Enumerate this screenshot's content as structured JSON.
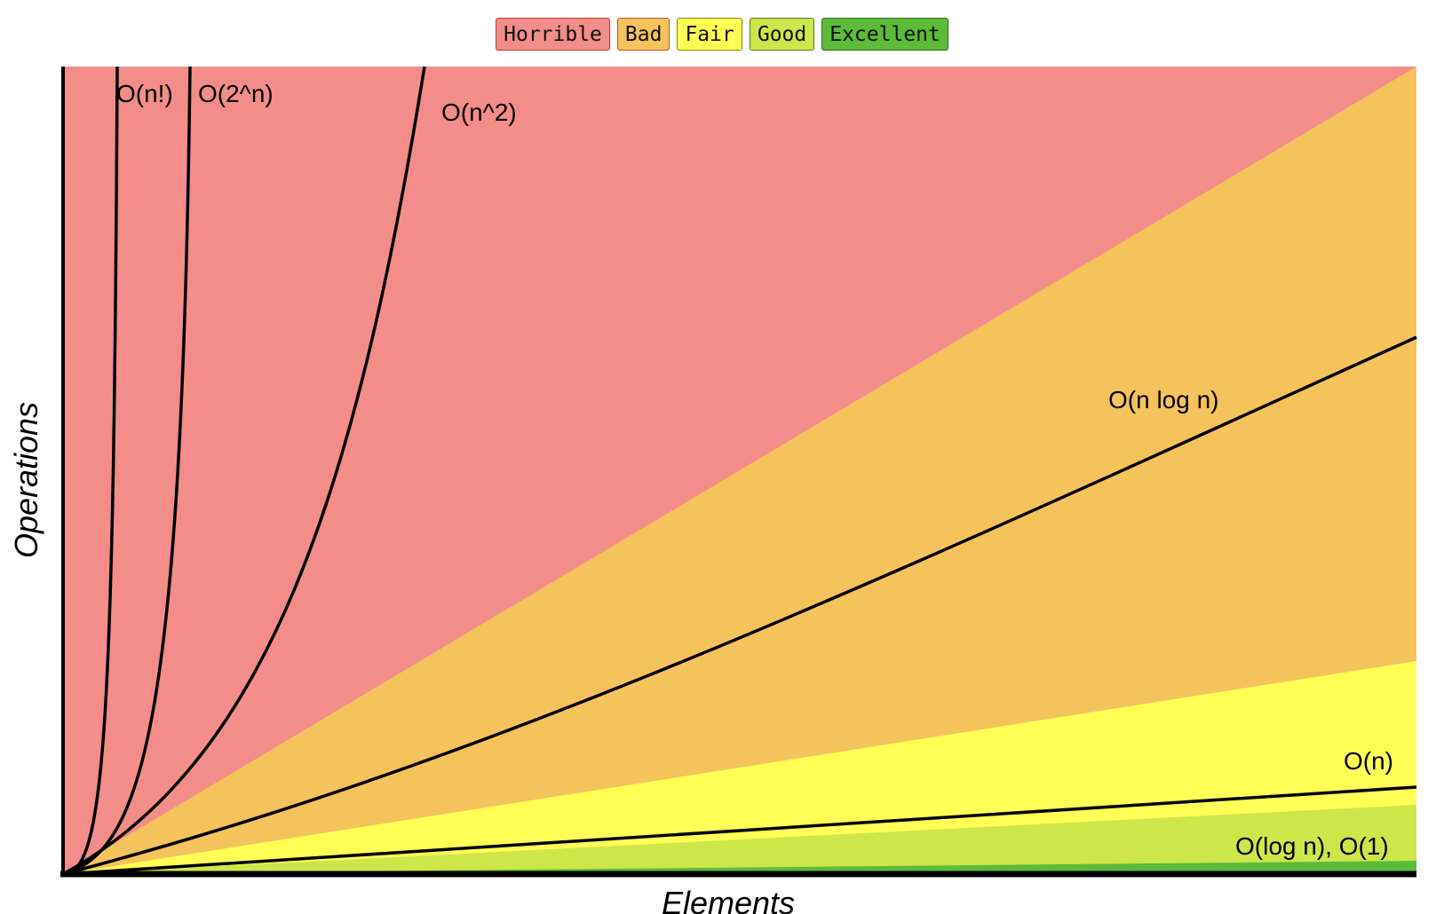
{
  "legend": [
    {
      "label": "Horrible",
      "color": "#f28d8a",
      "border": "#c0392b"
    },
    {
      "label": "Bad",
      "color": "#f5c35c",
      "border": "#b9542b"
    },
    {
      "label": "Fair",
      "color": "#ffff55",
      "border": "#888800"
    },
    {
      "label": "Good",
      "color": "#cde64a",
      "border": "#557722"
    },
    {
      "label": "Excellent",
      "color": "#5dbb3a",
      "border": "#2f6a1c"
    }
  ],
  "chart_data": {
    "type": "area",
    "title": "",
    "xlabel": "Elements",
    "ylabel": "Operations",
    "axis_ticks": false,
    "grid": false,
    "legend_position": "top-center",
    "regions": [
      {
        "name": "Horrible",
        "color": "#f28d8a"
      },
      {
        "name": "Bad",
        "color": "#f5c35c"
      },
      {
        "name": "Fair",
        "color": "#ffff55"
      },
      {
        "name": "Good",
        "color": "#cde64a"
      },
      {
        "name": "Excellent",
        "color": "#5dbb3a"
      }
    ],
    "curves": [
      {
        "label": "O(n!)",
        "function": "factorial"
      },
      {
        "label": "O(2^n)",
        "function": "exponential"
      },
      {
        "label": "O(n^2)",
        "function": "quadratic"
      },
      {
        "label": "O(n log n)",
        "function": "linearithmic"
      },
      {
        "label": "O(n)",
        "function": "linear"
      },
      {
        "label": "O(log n), O(1)",
        "function": "logarithmic_constant"
      }
    ]
  }
}
